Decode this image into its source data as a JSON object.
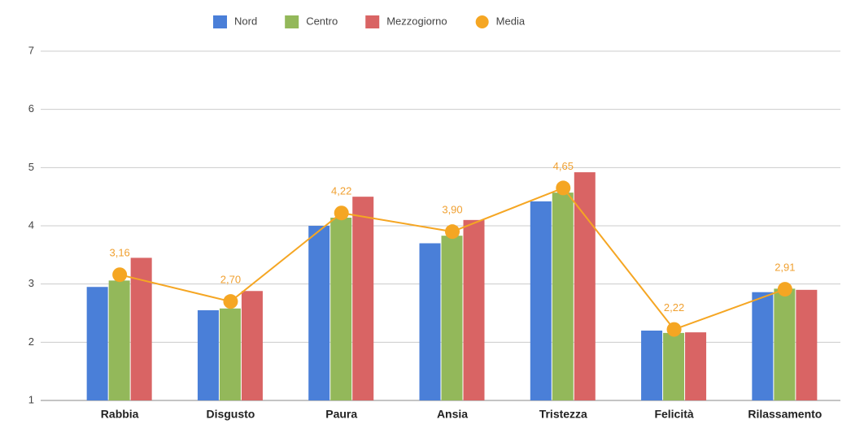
{
  "chart_data": {
    "type": "bar",
    "categories": [
      "Rabbia",
      "Disgusto",
      "Paura",
      "Ansia",
      "Tristezza",
      "Felicità",
      "Rilassamento"
    ],
    "series": [
      {
        "name": "Nord",
        "color": "#4a7fd8",
        "values": [
          2.95,
          2.55,
          4.0,
          3.7,
          4.42,
          2.2,
          2.86
        ]
      },
      {
        "name": "Centro",
        "color": "#93b85a",
        "values": [
          3.06,
          2.58,
          4.14,
          3.83,
          4.57,
          2.16,
          2.92
        ]
      },
      {
        "name": "Mezzogiorno",
        "color": "#d96464",
        "values": [
          3.45,
          2.88,
          4.5,
          4.1,
          4.92,
          2.17,
          2.9
        ]
      },
      {
        "name": "Media",
        "type": "line",
        "color": "#f5a623",
        "values": [
          3.16,
          2.7,
          4.22,
          3.9,
          4.65,
          2.22,
          2.91
        ],
        "value_labels": [
          "3,16",
          "2,70",
          "4,22",
          "3,90",
          "4,65",
          "2,22",
          "2,91"
        ]
      }
    ],
    "ylim": [
      1,
      7
    ],
    "yticks": [
      1,
      2,
      3,
      4,
      5,
      6,
      7
    ],
    "grid": true,
    "legend": "top"
  }
}
